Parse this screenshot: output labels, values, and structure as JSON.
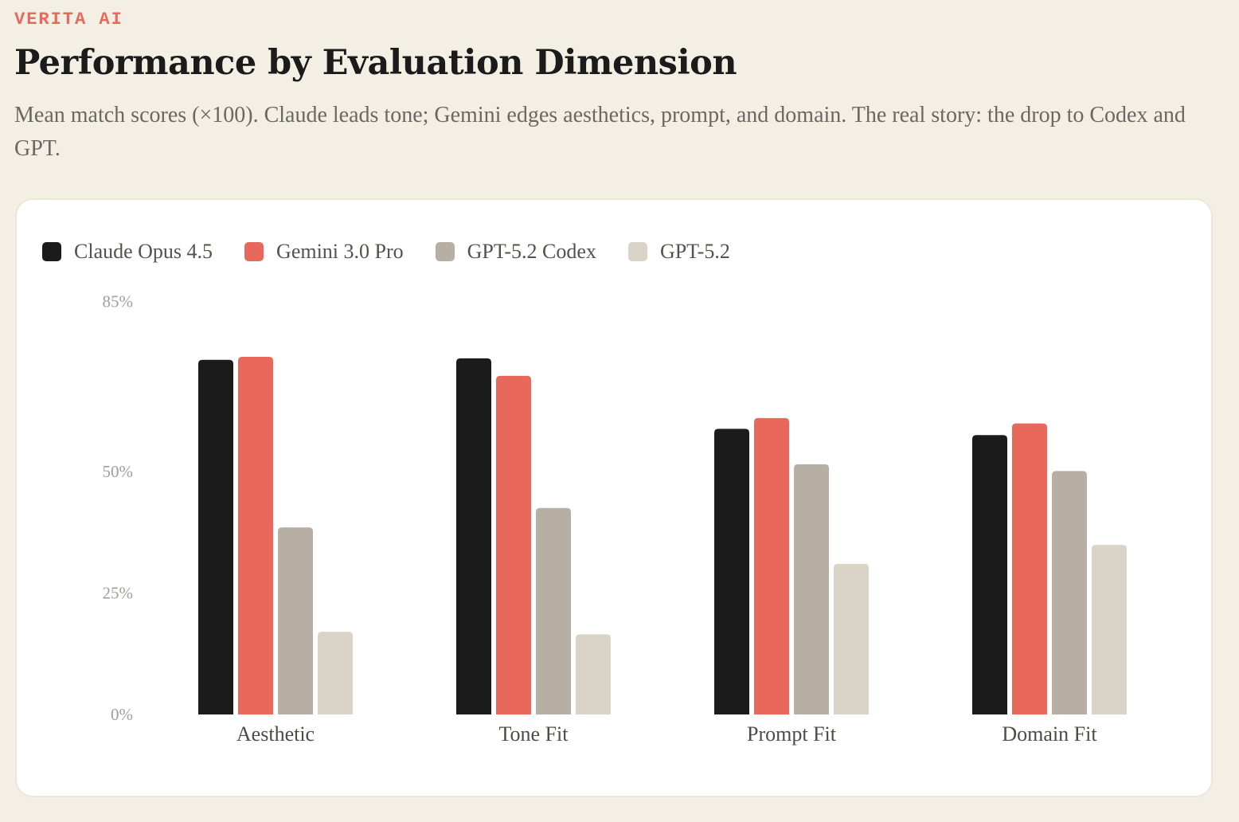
{
  "brand": "VERITA AI",
  "title": "Performance by Evaluation Dimension",
  "subtitle": "Mean match scores (×100). Claude leads tone; Gemini edges aesthetics, prompt, and domain. The real story: the drop to Codex and GPT.",
  "colors": {
    "background": "#f4efe4",
    "card": "#ffffff",
    "brand": "#e8685b"
  },
  "chart_data": {
    "type": "bar",
    "title": "Performance by Evaluation Dimension",
    "xlabel": "",
    "ylabel": "",
    "ylim": [
      0,
      85
    ],
    "yticks": [
      {
        "value": 0,
        "label": "0%"
      },
      {
        "value": 25,
        "label": "25%"
      },
      {
        "value": 50,
        "label": "50%"
      },
      {
        "value": 85,
        "label": "85%"
      }
    ],
    "categories": [
      "Aesthetic",
      "Tone Fit",
      "Prompt Fit",
      "Domain Fit"
    ],
    "legend_position": "top-left",
    "grid": false,
    "series": [
      {
        "name": "Claude Opus 4.5",
        "color": "#1c1b1b",
        "values": [
          73,
          73.3,
          58.8,
          57.5
        ]
      },
      {
        "name": "Gemini 3.0 Pro",
        "color": "#e8685b",
        "values": [
          73.6,
          69.7,
          61,
          59.9
        ]
      },
      {
        "name": "GPT-5.2 Codex",
        "color": "#b8afa4",
        "values": [
          38.5,
          42.5,
          51.5,
          50.1
        ]
      },
      {
        "name": "GPT-5.2",
        "color": "#dad3c7",
        "values": [
          17,
          16.5,
          31,
          34.9
        ]
      }
    ]
  }
}
